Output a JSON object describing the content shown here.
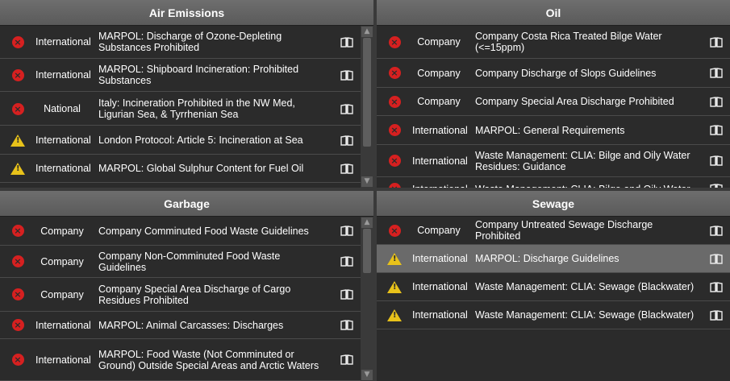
{
  "icons": {
    "error": "error-icon",
    "warning": "warning-icon",
    "guide": "book-icon"
  },
  "colors": {
    "error": "#d62020",
    "warning": "#e8c21a",
    "header": "#666666",
    "row": "#2b2b2b",
    "selected": "#6a6a6a"
  },
  "panels": {
    "air": {
      "title": "Air Emissions",
      "rows": [
        {
          "severity": "error",
          "scope": "International",
          "title": "MARPOL: Discharge of Ozone-Depleting Substances Prohibited"
        },
        {
          "severity": "error",
          "scope": "International",
          "title": "MARPOL: Shipboard Incineration: Prohibited Substances"
        },
        {
          "severity": "error",
          "scope": "National",
          "title": "Italy: Incineration Prohibited in the NW Med, Ligurian Sea, & Tyrrhenian Sea"
        },
        {
          "severity": "warning",
          "scope": "International",
          "title": "London Protocol: Article 5: Incineration at Sea"
        },
        {
          "severity": "warning",
          "scope": "International",
          "title": "MARPOL: Global Sulphur Content for Fuel Oil"
        }
      ]
    },
    "oil": {
      "title": "Oil",
      "rows": [
        {
          "severity": "error",
          "scope": "Company",
          "title": "Company Costa Rica Treated Bilge Water (<=15ppm)"
        },
        {
          "severity": "error",
          "scope": "Company",
          "title": "Company Discharge of Slops Guidelines"
        },
        {
          "severity": "error",
          "scope": "Company",
          "title": "Company Special Area Discharge Prohibited"
        },
        {
          "severity": "error",
          "scope": "International",
          "title": "MARPOL: General Requirements"
        },
        {
          "severity": "error",
          "scope": "International",
          "title": "Waste Management: CLIA: Bilge and Oily Water Residues: Guidance"
        },
        {
          "severity": "error",
          "scope": "International",
          "title": "Waste Management: CLIA: Bilge and Oily Water"
        }
      ]
    },
    "garbage": {
      "title": "Garbage",
      "rows": [
        {
          "severity": "error",
          "scope": "Company",
          "title": "Company Comminuted Food Waste Guidelines"
        },
        {
          "severity": "error",
          "scope": "Company",
          "title": "Company Non-Comminuted Food Waste Guidelines"
        },
        {
          "severity": "error",
          "scope": "Company",
          "title": "Company Special Area Discharge of Cargo Residues Prohibited"
        },
        {
          "severity": "error",
          "scope": "International",
          "title": "MARPOL: Animal Carcasses: Discharges"
        },
        {
          "severity": "error",
          "scope": "International",
          "title": "MARPOL: Food Waste (Not Comminuted or Ground) Outside Special Areas and Arctic Waters"
        }
      ]
    },
    "sewage": {
      "title": "Sewage",
      "rows": [
        {
          "severity": "error",
          "scope": "Company",
          "title": "Company Untreated Sewage Discharge Prohibited"
        },
        {
          "severity": "warning",
          "scope": "International",
          "title": "MARPOL: Discharge Guidelines"
        },
        {
          "severity": "warning",
          "scope": "International",
          "title": "Waste Management: CLIA: Sewage (Blackwater)"
        },
        {
          "severity": "warning",
          "scope": "International",
          "title": "Waste Management: CLIA: Sewage (Blackwater)"
        }
      ]
    }
  }
}
